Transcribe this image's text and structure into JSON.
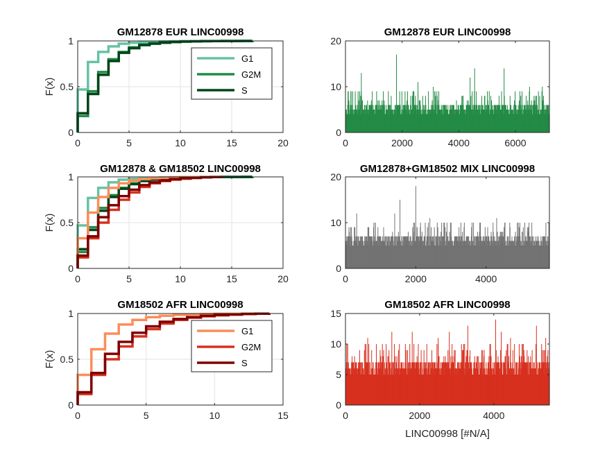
{
  "figure": {
    "background": "#ffffff"
  },
  "chart_data": [
    {
      "id": "p1",
      "type": "line",
      "subtype": "empirical-cdf-stairs",
      "title": "GM12878 EUR LINC00998",
      "ylabel": "F(x)",
      "xlim": [
        0,
        20
      ],
      "ylim": [
        0,
        1
      ],
      "xticks": [
        0,
        5,
        10,
        15,
        20
      ],
      "yticks": [
        0,
        0.5,
        1
      ],
      "grid": true,
      "legend": {
        "placement": "top-right",
        "entries": [
          "G1",
          "G2M",
          "S"
        ]
      },
      "series": [
        {
          "name": "G1",
          "color": "#66c2a4",
          "x": [
            0,
            1,
            2,
            3,
            4,
            5,
            6,
            7,
            8,
            9,
            10,
            12,
            17
          ],
          "y": [
            0.47,
            0.77,
            0.88,
            0.94,
            0.97,
            0.98,
            0.985,
            0.99,
            0.993,
            0.996,
            0.998,
            0.999,
            1.0
          ]
        },
        {
          "name": "G2M",
          "color": "#238b45",
          "x": [
            0,
            1,
            2,
            3,
            4,
            5,
            6,
            7,
            8,
            9,
            10,
            11,
            12,
            13,
            14,
            15,
            17
          ],
          "y": [
            0.18,
            0.45,
            0.66,
            0.8,
            0.88,
            0.93,
            0.96,
            0.975,
            0.985,
            0.99,
            0.993,
            0.995,
            0.997,
            0.998,
            0.999,
            0.9995,
            1.0
          ]
        },
        {
          "name": "S",
          "color": "#00441b",
          "x": [
            0,
            1,
            2,
            3,
            4,
            5,
            6,
            7,
            8,
            9,
            10,
            11,
            12,
            13,
            14,
            15,
            16,
            17
          ],
          "y": [
            0.21,
            0.42,
            0.63,
            0.78,
            0.87,
            0.92,
            0.955,
            0.97,
            0.98,
            0.988,
            0.992,
            0.995,
            0.997,
            0.998,
            0.999,
            0.9995,
            0.9998,
            1.0
          ]
        }
      ]
    },
    {
      "id": "p2",
      "type": "bar",
      "subtype": "per-cell-counts",
      "title": "GM12878 EUR LINC00998",
      "xlim": [
        0,
        7200
      ],
      "ylim": [
        0,
        20
      ],
      "xticks": [
        0,
        2000,
        4000,
        6000
      ],
      "yticks": [
        0,
        10,
        20
      ],
      "color": "#238b45",
      "n_cells": 7200,
      "typical_max": 6,
      "spikes": [
        {
          "x": 560,
          "y": 13
        },
        {
          "x": 1800,
          "y": 17
        },
        {
          "x": 2560,
          "y": 11
        },
        {
          "x": 4400,
          "y": 12
        },
        {
          "x": 4560,
          "y": 14
        },
        {
          "x": 5600,
          "y": 14
        },
        {
          "x": 3100,
          "y": 10
        },
        {
          "x": 6500,
          "y": 10
        },
        {
          "x": 1100,
          "y": 9
        },
        {
          "x": 6950,
          "y": 10
        }
      ]
    },
    {
      "id": "p3",
      "type": "line",
      "subtype": "empirical-cdf-stairs",
      "title": "GM12878 & GM18502 LINC00998",
      "ylabel": "F(x)",
      "xlim": [
        0,
        20
      ],
      "ylim": [
        0,
        1
      ],
      "xticks": [
        0,
        5,
        10,
        15,
        20
      ],
      "yticks": [
        0,
        0.5,
        1
      ],
      "grid": true,
      "series": [
        {
          "name": "G1",
          "color": "#66c2a4",
          "x": [
            0,
            1,
            2,
            3,
            4,
            5,
            6,
            7,
            8,
            9,
            10,
            12,
            17
          ],
          "y": [
            0.47,
            0.77,
            0.88,
            0.94,
            0.97,
            0.98,
            0.985,
            0.99,
            0.993,
            0.996,
            0.998,
            0.999,
            1.0
          ]
        },
        {
          "name": "G2M",
          "color": "#238b45",
          "x": [
            0,
            1,
            2,
            3,
            4,
            5,
            6,
            7,
            8,
            9,
            10,
            11,
            12,
            13,
            14,
            15,
            17
          ],
          "y": [
            0.18,
            0.45,
            0.66,
            0.8,
            0.88,
            0.93,
            0.96,
            0.975,
            0.985,
            0.99,
            0.993,
            0.995,
            0.997,
            0.998,
            0.999,
            0.9995,
            1.0
          ]
        },
        {
          "name": "S",
          "color": "#00441b",
          "x": [
            0,
            1,
            2,
            3,
            4,
            5,
            6,
            7,
            8,
            9,
            10,
            11,
            12,
            13,
            14,
            15,
            16,
            17
          ],
          "y": [
            0.21,
            0.42,
            0.63,
            0.78,
            0.87,
            0.92,
            0.955,
            0.97,
            0.98,
            0.988,
            0.992,
            0.995,
            0.997,
            0.998,
            0.999,
            0.9995,
            0.9998,
            1.0
          ]
        },
        {
          "name": "G1",
          "color": "#fc8d59",
          "x": [
            0,
            1,
            2,
            3,
            4,
            5,
            6,
            7,
            8,
            9,
            10,
            12,
            13
          ],
          "y": [
            0.33,
            0.61,
            0.78,
            0.88,
            0.93,
            0.96,
            0.975,
            0.985,
            0.99,
            0.994,
            0.997,
            0.999,
            1.0
          ]
        },
        {
          "name": "G2M",
          "color": "#d7301f",
          "x": [
            0,
            1,
            2,
            3,
            4,
            5,
            6,
            7,
            8,
            9,
            10,
            11,
            12,
            13,
            14
          ],
          "y": [
            0.12,
            0.33,
            0.5,
            0.64,
            0.75,
            0.83,
            0.89,
            0.93,
            0.955,
            0.97,
            0.98,
            0.988,
            0.994,
            0.998,
            1.0
          ]
        },
        {
          "name": "S",
          "color": "#7f0000",
          "x": [
            0,
            1,
            2,
            3,
            4,
            5,
            6,
            7,
            8,
            9,
            10,
            11,
            12,
            13,
            14
          ],
          "y": [
            0.14,
            0.35,
            0.56,
            0.69,
            0.79,
            0.86,
            0.91,
            0.94,
            0.96,
            0.975,
            0.985,
            0.99,
            0.995,
            0.998,
            1.0
          ]
        }
      ]
    },
    {
      "id": "p4",
      "type": "bar",
      "subtype": "per-cell-counts",
      "title": "GM12878+GM18502 MIX LINC00998",
      "xlim": [
        0,
        5800
      ],
      "ylim": [
        0,
        20
      ],
      "xticks": [
        0,
        2000,
        4000
      ],
      "yticks": [
        0,
        10,
        20
      ],
      "color": "#737373",
      "n_cells": 5800,
      "typical_max": 7,
      "spikes": [
        {
          "x": 320,
          "y": 12
        },
        {
          "x": 1550,
          "y": 15
        },
        {
          "x": 2000,
          "y": 18
        },
        {
          "x": 1400,
          "y": 12
        },
        {
          "x": 2400,
          "y": 11
        },
        {
          "x": 3600,
          "y": 10
        },
        {
          "x": 4300,
          "y": 11
        },
        {
          "x": 5100,
          "y": 10
        },
        {
          "x": 5700,
          "y": 10
        },
        {
          "x": 850,
          "y": 10
        }
      ]
    },
    {
      "id": "p5",
      "type": "line",
      "subtype": "empirical-cdf-stairs",
      "title": "GM18502 AFR LINC00998",
      "ylabel": "F(x)",
      "xlim": [
        0,
        15
      ],
      "ylim": [
        0,
        1
      ],
      "xticks": [
        0,
        5,
        10,
        15
      ],
      "yticks": [
        0,
        0.5,
        1
      ],
      "grid": true,
      "legend": {
        "placement": "top-right",
        "entries": [
          "G1",
          "G2M",
          "S"
        ]
      },
      "series": [
        {
          "name": "G1",
          "color": "#fc8d59",
          "x": [
            0,
            1,
            2,
            3,
            4,
            5,
            6,
            7,
            8,
            9,
            10,
            12,
            13
          ],
          "y": [
            0.33,
            0.61,
            0.78,
            0.88,
            0.93,
            0.96,
            0.975,
            0.985,
            0.99,
            0.994,
            0.997,
            0.999,
            1.0
          ]
        },
        {
          "name": "G2M",
          "color": "#d7301f",
          "x": [
            0,
            1,
            2,
            3,
            4,
            5,
            6,
            7,
            8,
            9,
            10,
            11,
            12,
            13,
            14
          ],
          "y": [
            0.12,
            0.33,
            0.5,
            0.64,
            0.75,
            0.83,
            0.89,
            0.93,
            0.955,
            0.97,
            0.98,
            0.988,
            0.994,
            0.998,
            1.0
          ]
        },
        {
          "name": "S",
          "color": "#7f0000",
          "x": [
            0,
            1,
            2,
            3,
            4,
            5,
            6,
            7,
            8,
            9,
            10,
            11,
            12,
            13,
            14
          ],
          "y": [
            0.14,
            0.35,
            0.56,
            0.69,
            0.79,
            0.86,
            0.91,
            0.94,
            0.96,
            0.975,
            0.985,
            0.99,
            0.995,
            0.998,
            1.0
          ]
        }
      ]
    },
    {
      "id": "p6",
      "type": "bar",
      "subtype": "per-cell-counts",
      "title": "GM18502 AFR LINC00998",
      "xlabel": "LINC00998 [#N/A]",
      "xlim": [
        0,
        5500
      ],
      "ylim": [
        0,
        15
      ],
      "xticks": [
        0,
        2000,
        4000
      ],
      "yticks": [
        0,
        5,
        10,
        15
      ],
      "color": "#d7301f",
      "n_cells": 5500,
      "typical_max": 7,
      "spikes": [
        {
          "x": 60,
          "y": 10
        },
        {
          "x": 1250,
          "y": 12
        },
        {
          "x": 1800,
          "y": 12
        },
        {
          "x": 2800,
          "y": 12
        },
        {
          "x": 3300,
          "y": 13
        },
        {
          "x": 4050,
          "y": 14
        },
        {
          "x": 4200,
          "y": 12
        },
        {
          "x": 4450,
          "y": 11
        },
        {
          "x": 5150,
          "y": 13
        },
        {
          "x": 2500,
          "y": 11
        },
        {
          "x": 600,
          "y": 11
        },
        {
          "x": 5400,
          "y": 11
        }
      ]
    }
  ]
}
